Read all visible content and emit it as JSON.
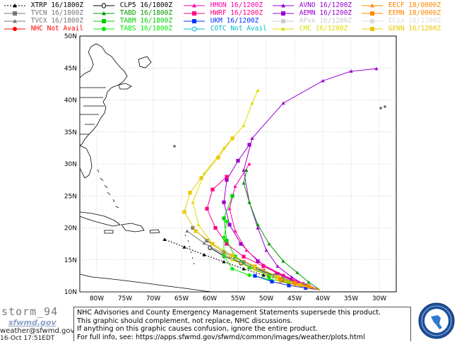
{
  "legend": [
    {
      "label": "XTRP 16/1800Z",
      "color": "#000000",
      "marker": "triangle",
      "dashed": true
    },
    {
      "label": "CLP5 16/1800Z",
      "color": "#000000",
      "marker": "circle-zero",
      "dashed": false
    },
    {
      "label": "HMON 16/1200Z",
      "color": "#ff00aa",
      "marker": "triangle",
      "dashed": false
    },
    {
      "label": "AVNO 16/1200Z",
      "color": "#9900cc",
      "marker": "triangle",
      "dashed": false
    },
    {
      "label": "EECF 18/0000Z",
      "color": "#ff8800",
      "marker": "triangle",
      "dashed": false
    },
    {
      "label": "TVCN 16/1800Z",
      "color": "#777777",
      "marker": "square",
      "dashed": false
    },
    {
      "label": "TABD 16/1800Z",
      "color": "#009900",
      "marker": "triangle",
      "dashed": false
    },
    {
      "label": "HWRF 16/1200Z",
      "color": "#ff0088",
      "marker": "square",
      "dashed": false
    },
    {
      "label": "AEMN 16/1200Z",
      "color": "#9900cc",
      "marker": "square",
      "dashed": false
    },
    {
      "label": "EEMN 18/0000Z",
      "color": "#ff8800",
      "marker": "square",
      "dashed": false
    },
    {
      "label": "TVCX 16/1800Z",
      "color": "#777777",
      "marker": "triangle",
      "dashed": false
    },
    {
      "label": "TABM 16/1800Z",
      "color": "#00cc00",
      "marker": "square",
      "dashed": false
    },
    {
      "label": "UKM 16/1200Z",
      "color": "#0033ff",
      "marker": "square",
      "dashed": false
    },
    {
      "label": "APxx 16/1200Z",
      "color": "#cccccc",
      "marker": "square",
      "dashed": false
    },
    {
      "label": "ECxx 16/1200Z",
      "color": "#dddddd",
      "marker": "square",
      "dashed": false
    },
    {
      "label": "NHC Not Avail",
      "color": "#ff0000",
      "marker": "circle",
      "dashed": false
    },
    {
      "label": "TABS 16/1800Z",
      "color": "#00ee00",
      "marker": "circle",
      "dashed": false
    },
    {
      "label": "COTC Not Avail",
      "color": "#00bbcc",
      "marker": "circle-open",
      "dashed": false
    },
    {
      "label": "CMC 16/1200Z",
      "color": "#dddd00",
      "marker": "triangle",
      "dashed": false
    },
    {
      "label": "GENN 16/1200Z",
      "color": "#e8c800",
      "marker": "square",
      "dashed": false
    }
  ],
  "map": {
    "lat_labels": [
      "50N",
      "45N",
      "40N",
      "35N",
      "30N",
      "25N",
      "20N",
      "15N",
      "10N"
    ],
    "lon_labels": [
      "80W",
      "75W",
      "70W",
      "65W",
      "60W",
      "55W",
      "50W",
      "45W",
      "40W",
      "35W",
      "30W"
    ],
    "lat_range": [
      10,
      50
    ],
    "lon_range": [
      -83,
      -27
    ],
    "tracks": [
      {
        "model": "XTRP",
        "color": "#000000",
        "marker": "triangle",
        "dashed": true,
        "points": [
          [
            -40.5,
            10.3
          ],
          [
            -43.5,
            11.0
          ],
          [
            -47,
            11.8
          ],
          [
            -50.5,
            12.6
          ],
          [
            -54,
            13.6
          ],
          [
            -57.5,
            14.7
          ],
          [
            -61,
            15.8
          ],
          [
            -64.5,
            17.0
          ],
          [
            -68,
            18.2
          ]
        ]
      },
      {
        "model": "CLP5",
        "color": "#000000",
        "marker": "circle-zero",
        "dashed": false,
        "points": [
          [
            -40.5,
            10.3
          ],
          [
            -43,
            10.9
          ],
          [
            -45.5,
            11.7
          ],
          [
            -48.5,
            12.5
          ],
          [
            -51.5,
            13.5
          ],
          [
            -54.5,
            14.5
          ],
          [
            -57.5,
            15.6
          ],
          [
            -60,
            16.9
          ]
        ]
      },
      {
        "model": "AVNO",
        "color": "#9900cc",
        "marker": "triangle",
        "dashed": false,
        "points": [
          [
            -40.5,
            10.3
          ],
          [
            -43,
            11.0
          ],
          [
            -45.5,
            12.3
          ],
          [
            -48,
            14.0
          ],
          [
            -50,
            16.5
          ],
          [
            -51.5,
            20.0
          ],
          [
            -53,
            24.0
          ],
          [
            -54,
            29.0
          ],
          [
            -52.5,
            34.0
          ],
          [
            -47,
            39.5
          ],
          [
            -40,
            43.0
          ],
          [
            -35,
            44.5
          ],
          [
            -30.5,
            44.9
          ]
        ]
      },
      {
        "model": "AEMN",
        "color": "#9900cc",
        "marker": "square",
        "dashed": false,
        "points": [
          [
            -40.5,
            10.3
          ],
          [
            -44,
            11.2
          ],
          [
            -48,
            12.8
          ],
          [
            -51.5,
            14.8
          ],
          [
            -54.5,
            17.5
          ],
          [
            -56.5,
            20.5
          ],
          [
            -57.5,
            24.0
          ],
          [
            -57,
            27.5
          ],
          [
            -55,
            30.5
          ],
          [
            -53,
            33.0
          ]
        ]
      },
      {
        "model": "HMON",
        "color": "#ff00aa",
        "marker": "triangle",
        "dashed": false,
        "points": [
          [
            -40.5,
            10.3
          ],
          [
            -43.5,
            11.3
          ],
          [
            -47,
            12.6
          ],
          [
            -50.5,
            14.2
          ],
          [
            -53.5,
            16.5
          ],
          [
            -55.5,
            19.5
          ],
          [
            -56.5,
            23.0
          ],
          [
            -55.5,
            26.5
          ],
          [
            -53,
            30.0
          ]
        ]
      },
      {
        "model": "HWRF",
        "color": "#ff0088",
        "marker": "square",
        "dashed": false,
        "points": [
          [
            -40.5,
            10.3
          ],
          [
            -43.5,
            11.2
          ],
          [
            -47,
            12.5
          ],
          [
            -50.5,
            14.0
          ],
          [
            -54,
            15.5
          ],
          [
            -57,
            17.5
          ],
          [
            -59,
            20.0
          ],
          [
            -60.5,
            23.0
          ],
          [
            -59.5,
            26.0
          ],
          [
            -57,
            28.0
          ]
        ]
      },
      {
        "model": "TVCN",
        "color": "#777777",
        "marker": "square",
        "dashed": false,
        "points": [
          [
            -40.5,
            10.3
          ],
          [
            -43.5,
            11.1
          ],
          [
            -47,
            12.1
          ],
          [
            -50.5,
            13.3
          ],
          [
            -54,
            14.7
          ],
          [
            -57.5,
            16.2
          ],
          [
            -60.5,
            18.0
          ],
          [
            -63,
            20.0
          ]
        ]
      },
      {
        "model": "TVCX",
        "color": "#777777",
        "marker": "triangle",
        "dashed": false,
        "points": [
          [
            -40.5,
            10.3
          ],
          [
            -43.5,
            11.0
          ],
          [
            -47,
            12.0
          ],
          [
            -50.5,
            13.1
          ],
          [
            -54,
            14.4
          ],
          [
            -57.5,
            15.9
          ],
          [
            -61,
            17.6
          ],
          [
            -64,
            19.5
          ]
        ]
      },
      {
        "model": "TABD",
        "color": "#009900",
        "marker": "triangle",
        "dashed": false,
        "points": [
          [
            -40.5,
            10.3
          ],
          [
            -42.5,
            11.5
          ],
          [
            -44.5,
            13.0
          ],
          [
            -47,
            14.8
          ],
          [
            -49.5,
            17.5
          ],
          [
            -51.5,
            20.5
          ],
          [
            -53,
            24.0
          ],
          [
            -54,
            27.0
          ],
          [
            -53.5,
            29.0
          ]
        ]
      },
      {
        "model": "TABM",
        "color": "#00cc00",
        "marker": "square",
        "dashed": false,
        "points": [
          [
            -40.5,
            10.3
          ],
          [
            -43,
            10.8
          ],
          [
            -46,
            11.5
          ],
          [
            -49.5,
            12.5
          ],
          [
            -53,
            13.8
          ],
          [
            -55.5,
            15.5
          ],
          [
            -57,
            18.0
          ],
          [
            -57.5,
            21.5
          ],
          [
            -56,
            25.0
          ]
        ]
      },
      {
        "model": "TABS",
        "color": "#00ee00",
        "marker": "circle",
        "dashed": false,
        "points": [
          [
            -40.5,
            10.3
          ],
          [
            -43,
            10.8
          ],
          [
            -46,
            11.4
          ],
          [
            -49.5,
            12.0
          ],
          [
            -53,
            12.6
          ],
          [
            -56,
            13.6
          ],
          [
            -57.5,
            15.6
          ],
          [
            -57.5,
            18.5
          ],
          [
            -57,
            21.0
          ]
        ]
      },
      {
        "model": "UKM",
        "color": "#0033ff",
        "marker": "square",
        "dashed": false,
        "points": [
          [
            -40.5,
            10.3
          ],
          [
            -43,
            10.6
          ],
          [
            -46,
            11.0
          ],
          [
            -49,
            11.6
          ],
          [
            -52,
            12.5
          ]
        ]
      },
      {
        "model": "CMC",
        "color": "#dddd00",
        "marker": "triangle",
        "dashed": false,
        "points": [
          [
            -40.5,
            10.3
          ],
          [
            -44,
            11.0
          ],
          [
            -48,
            12.0
          ],
          [
            -52,
            13.5
          ],
          [
            -56,
            15.0
          ],
          [
            -59.5,
            17.5
          ],
          [
            -62,
            20.5
          ],
          [
            -63,
            24.0
          ],
          [
            -61,
            28.5
          ],
          [
            -57.5,
            32.5
          ],
          [
            -54,
            36.0
          ],
          [
            -52.5,
            39.5
          ],
          [
            -51.5,
            41.5
          ]
        ]
      },
      {
        "model": "GENN",
        "color": "#e8c800",
        "marker": "square",
        "dashed": false,
        "points": [
          [
            -40.5,
            10.3
          ],
          [
            -44,
            11.1
          ],
          [
            -48,
            12.4
          ],
          [
            -52,
            14.0
          ],
          [
            -56,
            15.7
          ],
          [
            -59.5,
            17.5
          ],
          [
            -62.5,
            19.5
          ],
          [
            -64.5,
            22.5
          ],
          [
            -63.5,
            25.5
          ],
          [
            -61.5,
            27.8
          ],
          [
            -58.5,
            31.0
          ],
          [
            -56,
            34.0
          ]
        ]
      },
      {
        "model": "EECF",
        "color": "#ff8800",
        "marker": "triangle",
        "dashed": false,
        "points": [
          [
            -40.5,
            10.3
          ],
          [
            -42.5,
            10.7
          ],
          [
            -45,
            11.1
          ],
          [
            -47.5,
            11.6
          ]
        ]
      },
      {
        "model": "EEMN",
        "color": "#ff8800",
        "marker": "square",
        "dashed": false,
        "points": [
          [
            -40.5,
            10.3
          ],
          [
            -42.5,
            10.9
          ],
          [
            -45,
            11.4
          ],
          [
            -47.5,
            12.0
          ]
        ]
      }
    ]
  },
  "footer": {
    "brand_line1": "storm_94",
    "brand_line2": "sfwmd.gov",
    "email": "weather@sfwmd.gov",
    "timestamp": "16-Oct 17:51EDT",
    "disclaimer": [
      "NHC Advisories and County Emergency Management Statements supersede this product.",
      "This graphic should complement, not replace, NHC discussions.",
      "If anything on this graphic causes confusion, ignore the entire product.",
      "For full info, see:  https://apps.sfwmd.gov/sfwmd/common/images/weather/plots.html"
    ],
    "seal_icon": "district-seal-icon"
  }
}
